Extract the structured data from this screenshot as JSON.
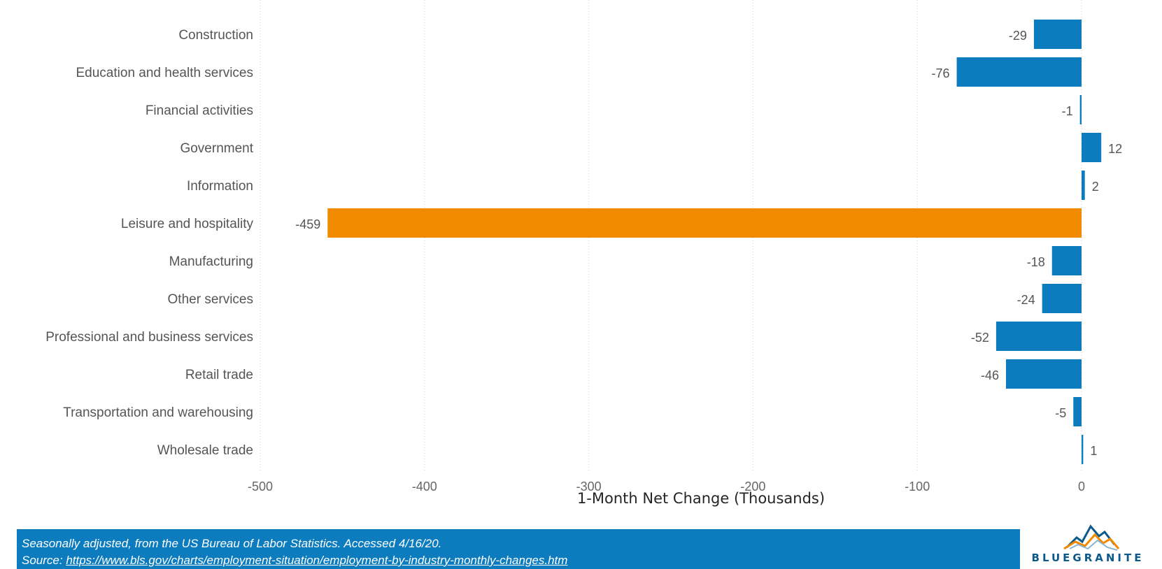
{
  "chart_data": {
    "type": "bar",
    "orientation": "horizontal",
    "categories": [
      "Construction",
      "Education and health services",
      "Financial activities",
      "Government",
      "Information",
      "Leisure and hospitality",
      "Manufacturing",
      "Other services",
      "Professional and business services",
      "Retail trade",
      "Transportation and warehousing",
      "Wholesale trade"
    ],
    "values": [
      -29,
      -76,
      -1,
      12,
      2,
      -459,
      -18,
      -24,
      -52,
      -46,
      -5,
      1
    ],
    "data_labels": [
      "-29",
      "-76",
      "-1",
      "12",
      "2",
      "-459",
      "-18",
      "-24",
      "-52",
      "-46",
      "-5",
      "1"
    ],
    "highlight_category": "Leisure and hospitality",
    "xlabel": "1-Month Net Change (Thousands)",
    "xlim": [
      -500,
      55
    ],
    "xticks": [
      -500,
      -400,
      -300,
      -200,
      -100,
      0
    ],
    "xtick_labels": [
      "-500",
      "-400",
      "-300",
      "-200",
      "-100",
      "0"
    ],
    "grid": "vertical dotted",
    "colors": {
      "bar": "#0c7cbf",
      "highlight": "#f28a00"
    }
  },
  "footer": {
    "note": "Seasonally adjusted, from the US Bureau of Labor Statistics. Accessed 4/16/20.",
    "source_prefix": "Source: ",
    "source_url": "https://www.bls.gov/charts/employment-situation/employment-by-industry-monthly-changes.htm",
    "background": "#0c7cbf"
  },
  "logo": {
    "text": "BLUEGRANITE",
    "icon": "mountain-logo-icon"
  }
}
